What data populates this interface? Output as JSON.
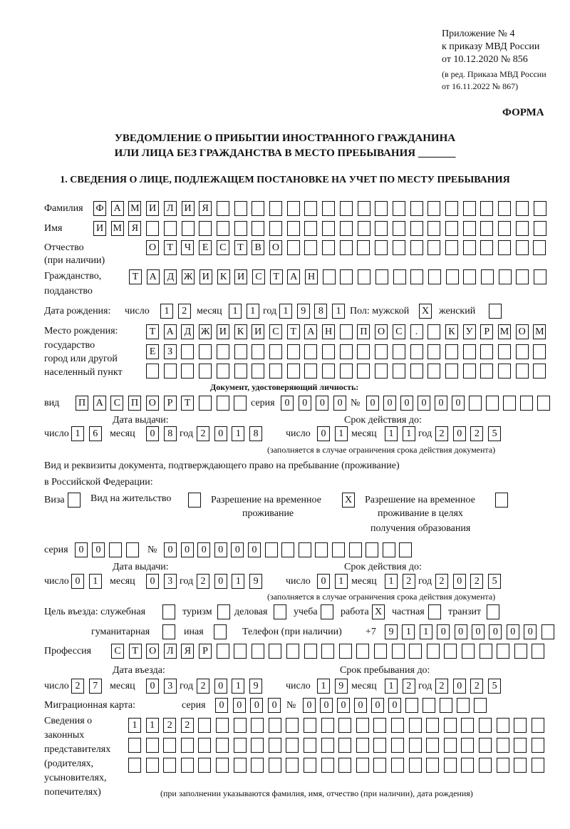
{
  "header": {
    "appendix": "Приложение № 4",
    "order": "к приказу МВД России",
    "order_date": "от 10.12.2020 № 856",
    "edition1": "(в ред. Приказа МВД России",
    "edition2": "от 16.11.2022 № 867)",
    "form_label": "ФОРМА",
    "title1": "УВЕДОМЛЕНИЕ О ПРИБЫТИИ ИНОСТРАННОГО ГРАЖДАНИНА",
    "title2": "ИЛИ ЛИЦА БЕЗ ГРАЖДАНСТВА В МЕСТО ПРЕБЫВАНИЯ _______",
    "section1": "1. СВЕДЕНИЯ О ЛИЦЕ, ПОДЛЕЖАЩЕМ ПОСТАНОВКЕ НА УЧЕТ ПО МЕСТУ ПРЕБЫВАНИЯ"
  },
  "labels": {
    "surname": "Фамилия",
    "name": "Имя",
    "patronymic": "Отчество",
    "patronymic2": "(при наличии)",
    "citizenship": "Гражданство,",
    "citizenship2": "подданство",
    "birth_date": "Дата рождения:",
    "day": "число",
    "month": "месяц",
    "year": "год",
    "sex": "Пол: мужской",
    "female": "женский",
    "birth_place": "Место рождения:",
    "birth_place2": "государство",
    "birth_place3": "город или другой",
    "birth_place4": "населенный пункт",
    "id_doc": "Документ, удостоверяющий личность:",
    "kind": "вид",
    "series": "серия",
    "number": "№",
    "issue_date": "Дата выдачи:",
    "valid_until": "Срок действия до:",
    "validity_note": "(заполняется в случае ограничения срока действия документа)",
    "right_doc1": "Вид и реквизиты документа, подтверждающего право на пребывание (проживание)",
    "right_doc2": "в Российской Федерации:",
    "visa": "Виза",
    "residence": "Вид на жительство",
    "temp1": "Разрешение на временное",
    "temp2": "проживание",
    "edu1": "Разрешение на временное",
    "edu2": "проживание в целях",
    "edu3": "получения образования",
    "purpose": "Цель въезда: служебная",
    "tourism": "туризм",
    "business": "деловая",
    "study": "учеба",
    "work": "работа",
    "private": "частная",
    "transit": "транзит",
    "humanitarian": "гуманитарная",
    "other": "иная",
    "phone": "Телефон (при наличии)",
    "phone_prefix": "+7",
    "profession": "Профессия",
    "entry_date": "Дата въезда:",
    "stay_until": "Срок пребывания до:",
    "migration_card": "Миграционная карта:",
    "reps1": "Сведения о",
    "reps2": "законных",
    "reps3": "представителях",
    "reps4": "(родителях,",
    "reps5": "усыновителях,",
    "reps6": "попечителях)",
    "reps_note": "(при заполнении указываются фамилия, имя, отчество (при наличии), дата рождения)"
  },
  "fields": {
    "surname": "ФАМИЛИЯ",
    "name": "ИМЯ",
    "patronymic": "ОТЧЕСТВО",
    "citizenship": "ТАДЖИКИСТАН",
    "birth_day": "12",
    "birth_month": "11",
    "birth_year": "1981",
    "sex_male": "X",
    "sex_female": "",
    "birth_place1": "ТАДЖИКИСТАН ПОС. КУРМОМБ",
    "birth_place2": "ЕЗ",
    "birth_place3": "",
    "id_kind": "ПАСПОРТ",
    "id_series": "0000",
    "id_number": "000000",
    "id_issue_day": "16",
    "id_issue_month": "08",
    "id_issue_year": "2018",
    "id_valid_day": "01",
    "id_valid_month": "11",
    "id_valid_year": "2025",
    "visa": "",
    "residence": "",
    "temp_residence": "X",
    "edu_residence": "",
    "rd_series": "00",
    "rd_number": "000000",
    "rd_issue_day": "01",
    "rd_issue_month": "03",
    "rd_issue_year": "2019",
    "rd_valid_day": "01",
    "rd_valid_month": "12",
    "rd_valid_year": "2025",
    "purpose_official": "",
    "purpose_tourism": "",
    "purpose_business": "",
    "purpose_study": "",
    "purpose_work": "X",
    "purpose_private": "",
    "purpose_transit": "",
    "purpose_humanitarian": "",
    "purpose_other": "",
    "phone": "911000000",
    "profession": "СТОЛЯР",
    "entry_day": "27",
    "entry_month": "03",
    "entry_year": "2019",
    "stay_day": "19",
    "stay_month": "12",
    "stay_year": "2025",
    "mc_series": "0000",
    "mc_number": "000000",
    "reps1": "1122",
    "reps2": "",
    "reps3": ""
  }
}
